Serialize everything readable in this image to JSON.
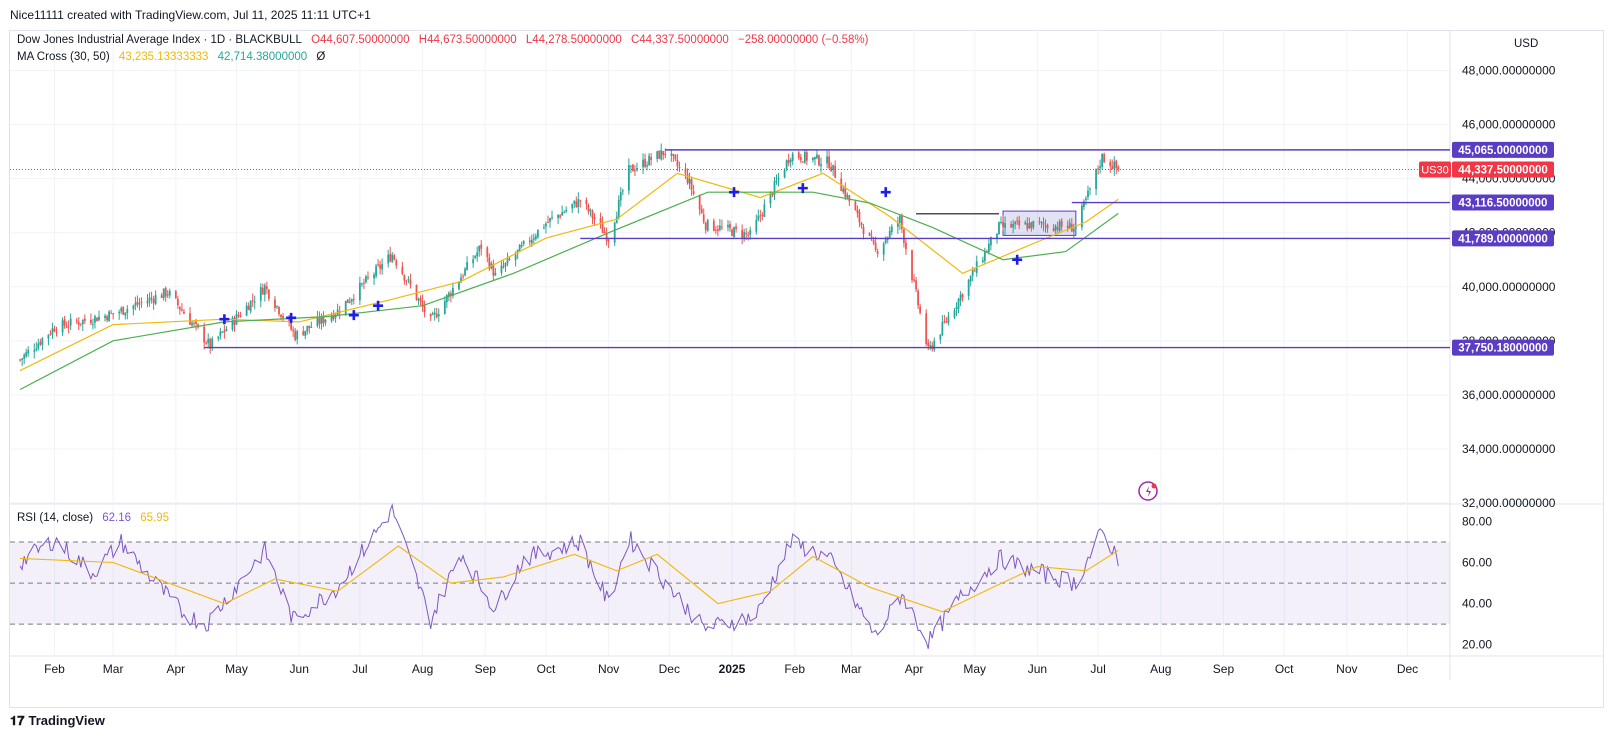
{
  "header": {
    "caption": "Nice11111 created with TradingView.com, Jul 11, 2025 11:11 UTC+1"
  },
  "legend": {
    "symbol": "Dow Jones Industrial Average Index · 1D · BLACKBULL",
    "open": "O44,607.50000000",
    "high": "H44,673.50000000",
    "low": "L44,278.50000000",
    "close": "C44,337.50000000",
    "change": "−258.00000000 (−0.58%)",
    "ma_label": "MA Cross (30, 50)",
    "ma30": "43,235.13333333",
    "ma50": "42,714.38000000",
    "ma_extra": "Ø",
    "rsi_label": "RSI (14, close)",
    "rsi_value": "62.16",
    "rsi_ma": "65.95"
  },
  "currency": "USD",
  "brand": "TradingView",
  "colors": {
    "up": "#26a69a",
    "down": "#ef5350",
    "ma30": "#f0b90b",
    "ma50": "#4caf50",
    "level": "#5b3cc4",
    "rsi": "#7e57c2",
    "rsi_ma": "#f0b90b",
    "last": "#f23645"
  },
  "chart_data": [
    {
      "type": "candlestick",
      "title": "Dow Jones Industrial Average Index · 1D · BLACKBULL",
      "ylim": [
        32000,
        49500
      ],
      "y_ticks": [
        {
          "value": 48000,
          "label": "48,000.00000000"
        },
        {
          "value": 46000,
          "label": "46,000.00000000"
        },
        {
          "value": 44000,
          "label": "44,000.00000000"
        },
        {
          "value": 42000,
          "label": "42,000.00000000"
        },
        {
          "value": 40000,
          "label": "40,000.00000000"
        },
        {
          "value": 38000,
          "label": "38,000.00000000"
        },
        {
          "value": 36000,
          "label": "36,000.00000000"
        },
        {
          "value": 34000,
          "label": "34,000.00000000"
        },
        {
          "value": 32000,
          "label": "32,000.00000000"
        }
      ],
      "x_ticks": [
        "Feb",
        "Mar",
        "Apr",
        "May",
        "Jun",
        "Jul",
        "Aug",
        "Sep",
        "Oct",
        "Nov",
        "Dec",
        "2025",
        "Feb",
        "Mar",
        "Apr",
        "May",
        "Jun",
        "Jul",
        "Aug",
        "Sep",
        "Oct",
        "Nov",
        "Dec"
      ],
      "price_path": [
        {
          "date": "2024-01-15",
          "close": 37300
        },
        {
          "date": "2024-02-01",
          "close": 38500
        },
        {
          "date": "2024-03-01",
          "close": 39000
        },
        {
          "date": "2024-03-28",
          "close": 39800
        },
        {
          "date": "2024-04-18",
          "close": 37800
        },
        {
          "date": "2024-05-15",
          "close": 40000
        },
        {
          "date": "2024-05-30",
          "close": 38200
        },
        {
          "date": "2024-06-20",
          "close": 39100
        },
        {
          "date": "2024-07-17",
          "close": 41200
        },
        {
          "date": "2024-08-05",
          "close": 38700
        },
        {
          "date": "2024-08-30",
          "close": 41500
        },
        {
          "date": "2024-09-06",
          "close": 40400
        },
        {
          "date": "2024-09-30",
          "close": 42300
        },
        {
          "date": "2024-10-18",
          "close": 43200
        },
        {
          "date": "2024-11-01",
          "close": 41800
        },
        {
          "date": "2024-11-11",
          "close": 44300
        },
        {
          "date": "2024-11-29",
          "close": 45000
        },
        {
          "date": "2024-12-10",
          "close": 44000
        },
        {
          "date": "2024-12-19",
          "close": 42300
        },
        {
          "date": "2025-01-10",
          "close": 41900
        },
        {
          "date": "2025-01-30",
          "close": 44900
        },
        {
          "date": "2025-02-18",
          "close": 44600
        },
        {
          "date": "2025-03-13",
          "close": 41300
        },
        {
          "date": "2025-03-25",
          "close": 42500
        },
        {
          "date": "2025-04-08",
          "close": 37600
        },
        {
          "date": "2025-04-22",
          "close": 39400
        },
        {
          "date": "2025-05-13",
          "close": 42200
        },
        {
          "date": "2025-05-30",
          "close": 42300
        },
        {
          "date": "2025-06-20",
          "close": 42200
        },
        {
          "date": "2025-07-03",
          "close": 44800
        },
        {
          "date": "2025-07-11",
          "close": 44337.5
        }
      ],
      "ma30_path": [
        {
          "date": "2024-01-15",
          "value": 36900
        },
        {
          "date": "2024-03-01",
          "value": 38600
        },
        {
          "date": "2024-04-25",
          "value": 38800
        },
        {
          "date": "2024-06-01",
          "value": 38700
        },
        {
          "date": "2024-07-15",
          "value": 39500
        },
        {
          "date": "2024-08-20",
          "value": 40200
        },
        {
          "date": "2024-10-01",
          "value": 41800
        },
        {
          "date": "2024-11-05",
          "value": 42500
        },
        {
          "date": "2024-12-05",
          "value": 44200
        },
        {
          "date": "2025-01-15",
          "value": 43300
        },
        {
          "date": "2025-02-15",
          "value": 44200
        },
        {
          "date": "2025-03-20",
          "value": 42600
        },
        {
          "date": "2025-04-25",
          "value": 40500
        },
        {
          "date": "2025-05-30",
          "value": 41600
        },
        {
          "date": "2025-06-25",
          "value": 42400
        },
        {
          "date": "2025-07-11",
          "value": 43235.13
        }
      ],
      "ma50_path": [
        {
          "date": "2024-01-15",
          "value": 36200
        },
        {
          "date": "2024-03-01",
          "value": 38000
        },
        {
          "date": "2024-04-25",
          "value": 38700
        },
        {
          "date": "2024-06-15",
          "value": 38900
        },
        {
          "date": "2024-08-01",
          "value": 39300
        },
        {
          "date": "2024-09-15",
          "value": 40500
        },
        {
          "date": "2024-11-01",
          "value": 42000
        },
        {
          "date": "2024-12-20",
          "value": 43500
        },
        {
          "date": "2025-02-10",
          "value": 43500
        },
        {
          "date": "2025-03-10",
          "value": 43100
        },
        {
          "date": "2025-04-10",
          "value": 42200
        },
        {
          "date": "2025-05-15",
          "value": 41000
        },
        {
          "date": "2025-06-15",
          "value": 41300
        },
        {
          "date": "2025-07-11",
          "value": 42714.38
        }
      ],
      "cross_markers": [
        {
          "date": "2024-04-25",
          "value": 38800
        },
        {
          "date": "2024-05-28",
          "value": 38850
        },
        {
          "date": "2024-06-28",
          "value": 38950
        },
        {
          "date": "2024-07-10",
          "value": 39300
        },
        {
          "date": "2025-01-02",
          "value": 43500
        },
        {
          "date": "2025-02-05",
          "value": 43650
        },
        {
          "date": "2025-03-18",
          "value": 43500
        },
        {
          "date": "2025-05-22",
          "value": 41000
        }
      ],
      "levels": [
        {
          "value": 45065.0,
          "label": "45,065.00000000",
          "from": "2024-11-29"
        },
        {
          "value": 43116.5,
          "label": "43,116.50000000",
          "from": "2025-06-18"
        },
        {
          "value": 41789.0,
          "label": "41,789.00000000",
          "from": "2024-10-18"
        },
        {
          "value": 37750.18,
          "label": "37,750.18000000",
          "from": "2024-04-15"
        }
      ],
      "black_line": {
        "value": 42700,
        "from": "2025-04-02",
        "to": "2025-05-13"
      },
      "range_box": {
        "from": "2025-05-15",
        "to": "2025-06-20",
        "top": 42800,
        "bottom": 41900
      },
      "last_price": {
        "value": 44337.5,
        "label": "44,337.50000000",
        "symbol": "US30"
      }
    },
    {
      "type": "line",
      "title": "RSI (14, close)",
      "ylim": [
        15,
        88
      ],
      "y_ticks": [
        {
          "value": 80,
          "label": "80.00"
        },
        {
          "value": 60,
          "label": "60.00"
        },
        {
          "value": 40,
          "label": "40.00"
        },
        {
          "value": 20,
          "label": "20.00"
        }
      ],
      "bands": {
        "upper": 70,
        "middle": 50,
        "lower": 30
      },
      "rsi_path": [
        {
          "date": "2024-01-15",
          "value": 60
        },
        {
          "date": "2024-02-01",
          "value": 71
        },
        {
          "date": "2024-02-20",
          "value": 55
        },
        {
          "date": "2024-03-05",
          "value": 70
        },
        {
          "date": "2024-03-20",
          "value": 52
        },
        {
          "date": "2024-04-05",
          "value": 35
        },
        {
          "date": "2024-04-16",
          "value": 30
        },
        {
          "date": "2024-05-15",
          "value": 66
        },
        {
          "date": "2024-05-29",
          "value": 32
        },
        {
          "date": "2024-06-20",
          "value": 48
        },
        {
          "date": "2024-07-17",
          "value": 86
        },
        {
          "date": "2024-08-05",
          "value": 32
        },
        {
          "date": "2024-08-20",
          "value": 65
        },
        {
          "date": "2024-09-06",
          "value": 37
        },
        {
          "date": "2024-09-20",
          "value": 62
        },
        {
          "date": "2024-10-18",
          "value": 70
        },
        {
          "date": "2024-11-01",
          "value": 40
        },
        {
          "date": "2024-11-11",
          "value": 72
        },
        {
          "date": "2024-12-18",
          "value": 28
        },
        {
          "date": "2025-01-13",
          "value": 34
        },
        {
          "date": "2025-01-30",
          "value": 70
        },
        {
          "date": "2025-02-18",
          "value": 62
        },
        {
          "date": "2025-03-13",
          "value": 24
        },
        {
          "date": "2025-03-26",
          "value": 45
        },
        {
          "date": "2025-04-08",
          "value": 21
        },
        {
          "date": "2025-04-23",
          "value": 42
        },
        {
          "date": "2025-05-13",
          "value": 62
        },
        {
          "date": "2025-05-30",
          "value": 56
        },
        {
          "date": "2025-06-20",
          "value": 50
        },
        {
          "date": "2025-07-03",
          "value": 75
        },
        {
          "date": "2025-07-11",
          "value": 62.16
        }
      ],
      "rsi_ma_path": [
        {
          "date": "2024-01-15",
          "value": 62
        },
        {
          "date": "2024-03-01",
          "value": 60
        },
        {
          "date": "2024-04-25",
          "value": 40
        },
        {
          "date": "2024-05-20",
          "value": 52
        },
        {
          "date": "2024-06-20",
          "value": 46
        },
        {
          "date": "2024-07-20",
          "value": 68
        },
        {
          "date": "2024-08-15",
          "value": 50
        },
        {
          "date": "2024-09-10",
          "value": 53
        },
        {
          "date": "2024-10-15",
          "value": 64
        },
        {
          "date": "2024-11-05",
          "value": 56
        },
        {
          "date": "2024-11-25",
          "value": 64
        },
        {
          "date": "2024-12-25",
          "value": 40
        },
        {
          "date": "2025-01-20",
          "value": 46
        },
        {
          "date": "2025-02-10",
          "value": 63
        },
        {
          "date": "2025-03-10",
          "value": 48
        },
        {
          "date": "2025-04-15",
          "value": 36
        },
        {
          "date": "2025-05-10",
          "value": 48
        },
        {
          "date": "2025-06-01",
          "value": 58
        },
        {
          "date": "2025-06-25",
          "value": 56
        },
        {
          "date": "2025-07-11",
          "value": 65.95
        }
      ]
    }
  ]
}
